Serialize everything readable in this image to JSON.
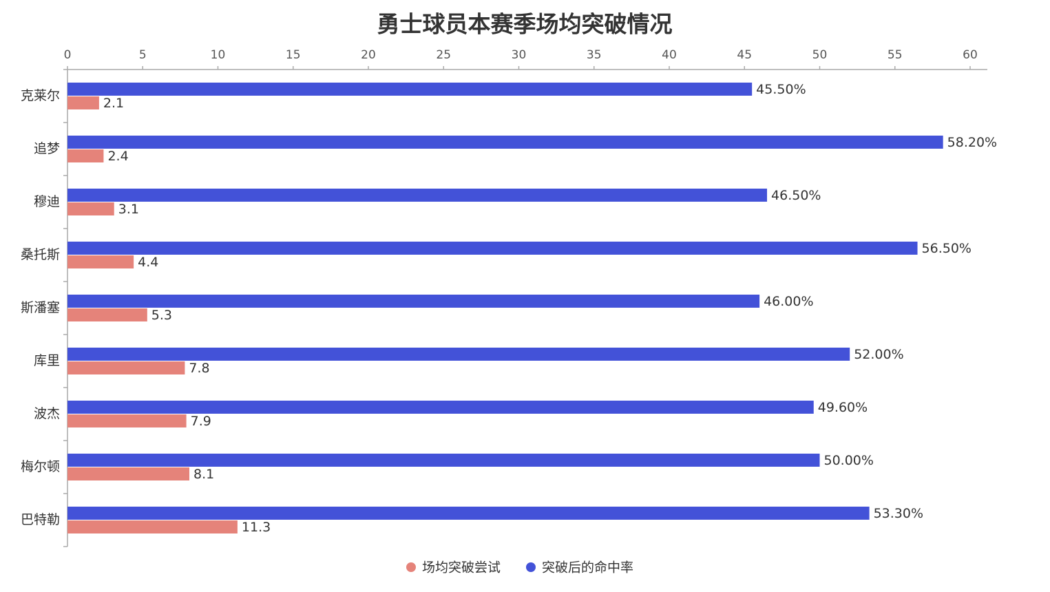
{
  "chart_data": {
    "type": "bar",
    "orientation": "horizontal",
    "title": "勇士球员本赛季场均突破情况",
    "categories": [
      "克莱尔",
      "追梦",
      "穆迪",
      "桑托斯",
      "斯潘塞",
      "库里",
      "波杰",
      "梅尔顿",
      "巴特勒"
    ],
    "series": [
      {
        "name": "场均突破尝试",
        "color": "#e5837a",
        "values": [
          2.1,
          2.4,
          3.1,
          4.4,
          5.3,
          7.8,
          7.9,
          8.1,
          11.3
        ]
      },
      {
        "name": "突破后的命中率",
        "color": "#4352d8",
        "values": [
          45.5,
          58.2,
          46.5,
          56.5,
          46,
          52,
          49.6,
          50,
          53.3
        ],
        "value_labels": [
          "45.50%",
          "58.20%",
          "46.50%",
          "56.50%",
          "46.00%",
          "52.00%",
          "49.60%",
          "50.00%",
          "53.30%"
        ]
      }
    ],
    "xlim": [
      0,
      60
    ],
    "xticks": [
      0,
      5,
      10,
      15,
      20,
      25,
      30,
      35,
      40,
      45,
      50,
      55,
      60
    ],
    "legend": "bottom"
  }
}
